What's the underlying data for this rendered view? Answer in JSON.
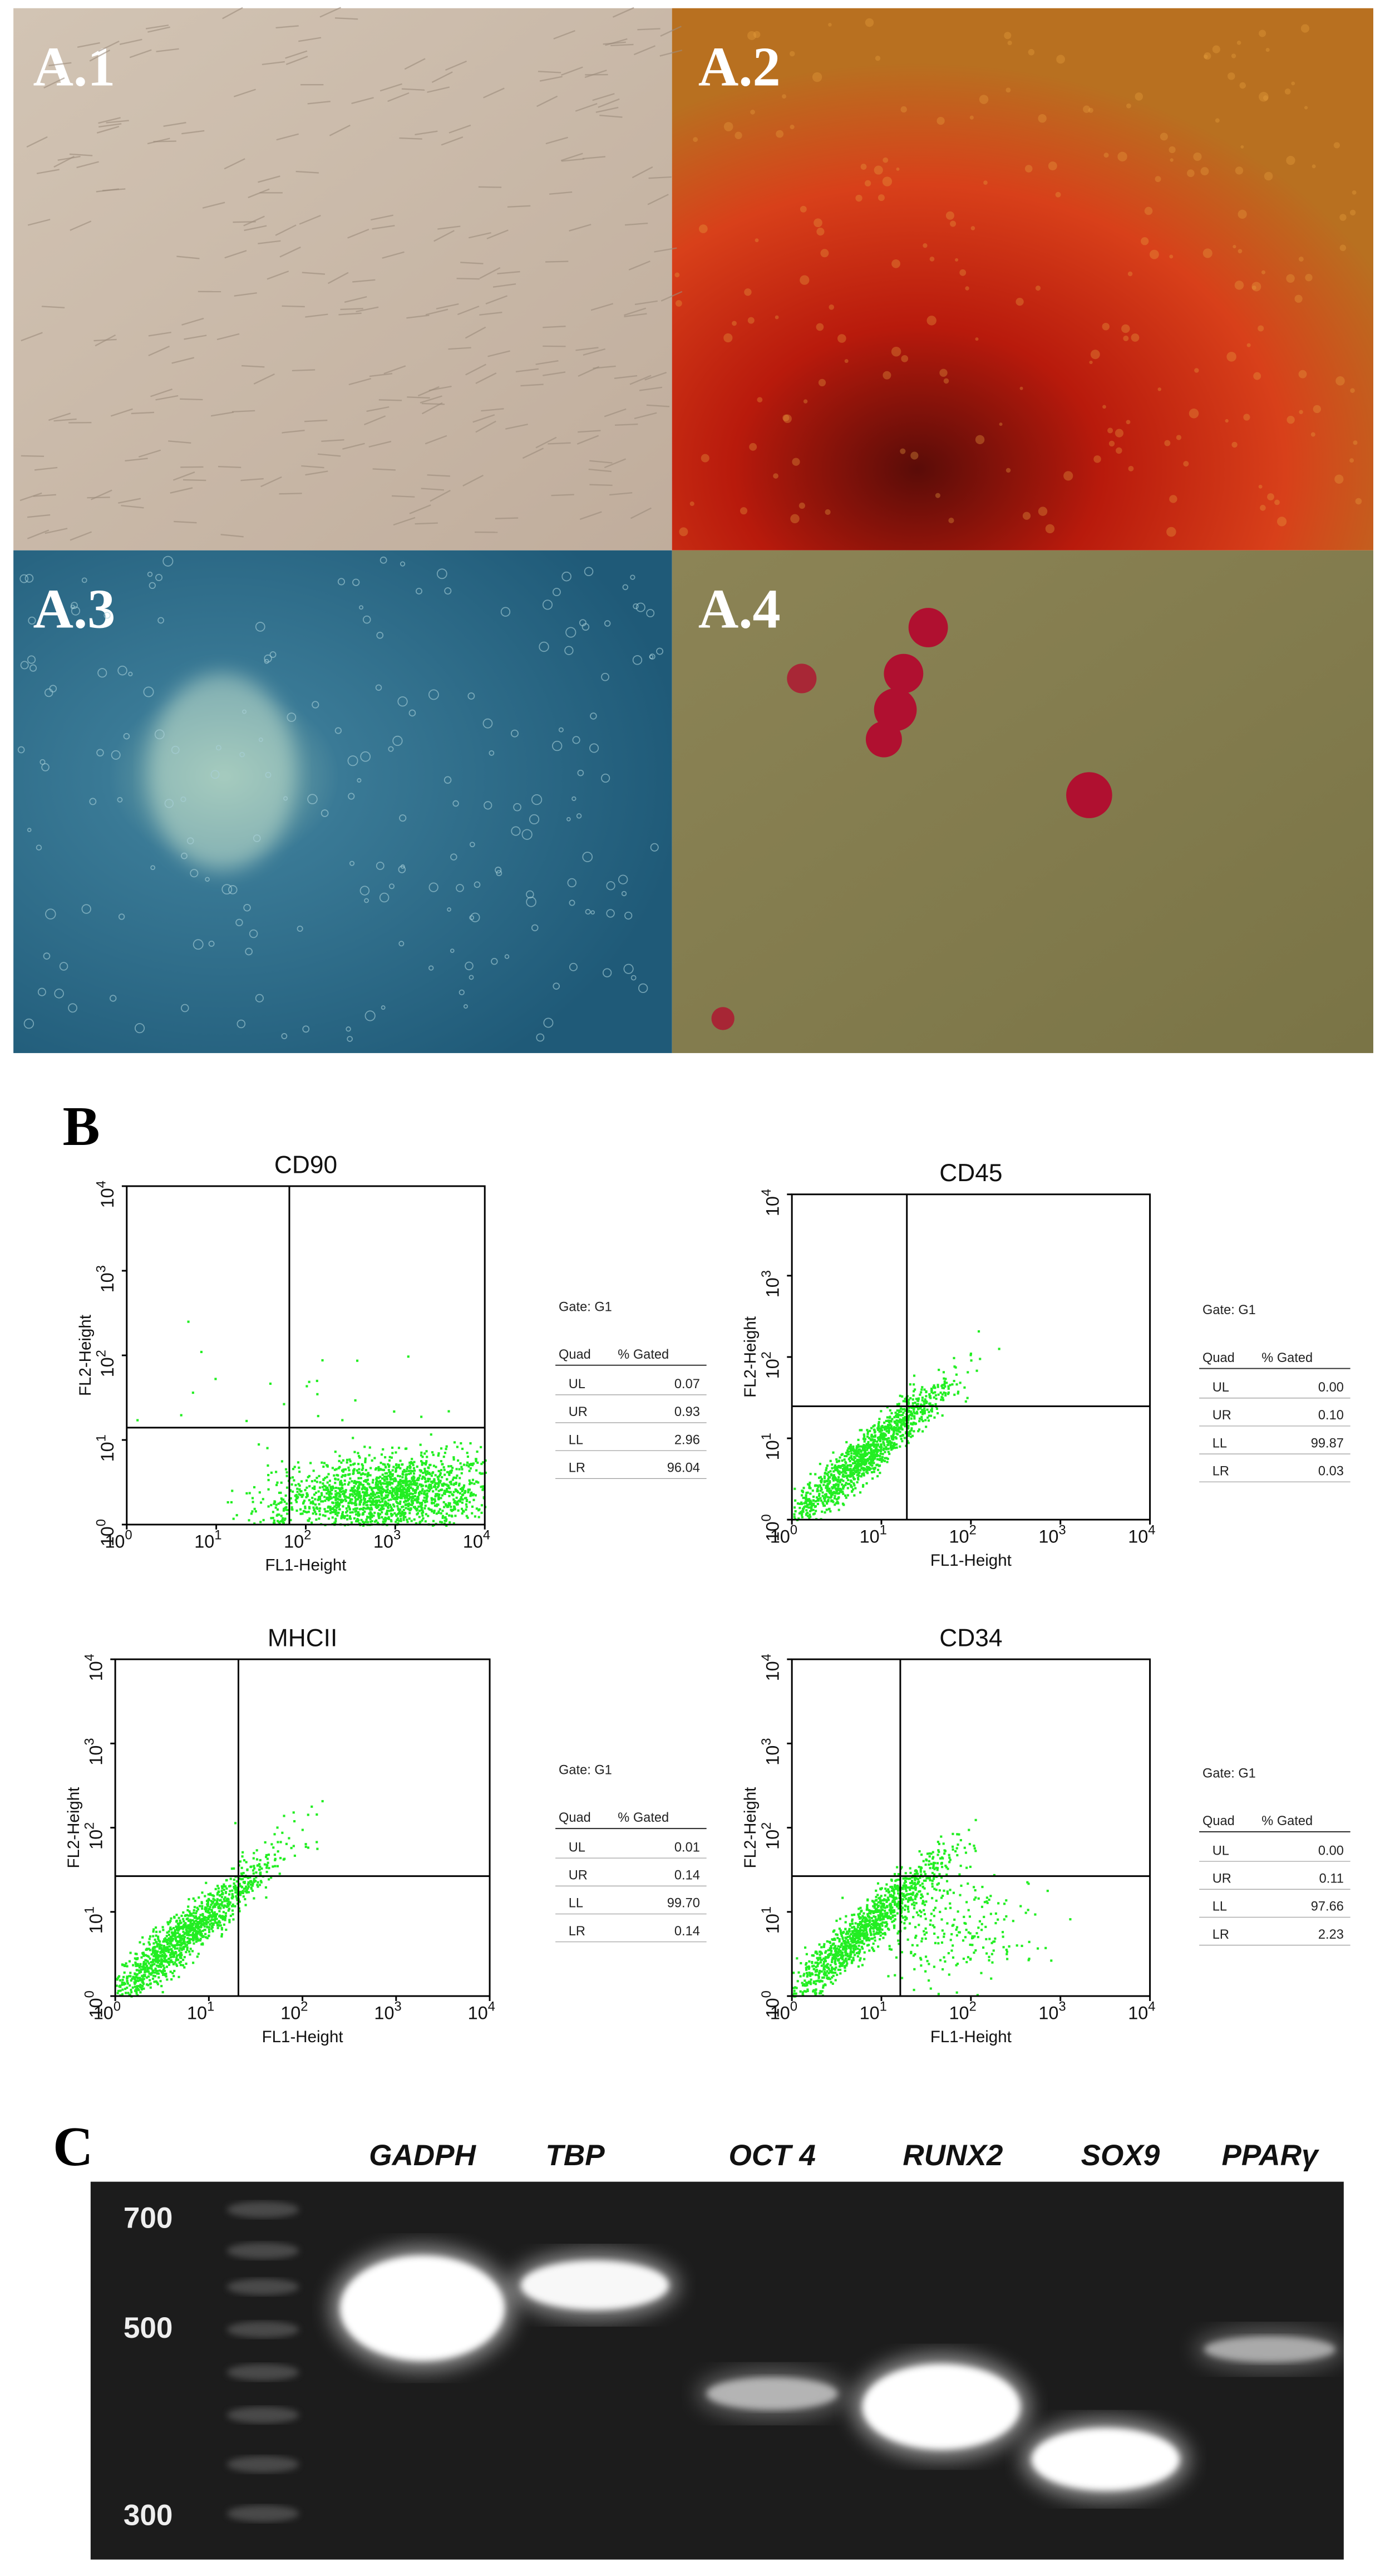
{
  "panel_a": {
    "labels": [
      "A.1",
      "A.2",
      "A.3",
      "A.4"
    ]
  },
  "panel_b": {
    "label": "B",
    "x_axis_label": "FL1-Height",
    "y_axis_label": "FL2-Height",
    "tick_base": "10",
    "tick_powers": [
      "0",
      "1",
      "2",
      "3",
      "4"
    ],
    "plots": [
      {
        "title": "CD90",
        "gate": "Gate: G1",
        "columns": [
          "Quad",
          "% Gated"
        ],
        "rows": [
          [
            "UL",
            "0.07"
          ],
          [
            "UR",
            "0.93"
          ],
          [
            "LL",
            "2.96"
          ],
          [
            "LR",
            "96.04"
          ]
        ]
      },
      {
        "title": "CD45",
        "gate": "Gate: G1",
        "columns": [
          "Quad",
          "% Gated"
        ],
        "rows": [
          [
            "UL",
            "0.00"
          ],
          [
            "UR",
            "0.10"
          ],
          [
            "LL",
            "99.87"
          ],
          [
            "LR",
            "0.03"
          ]
        ]
      },
      {
        "title": "MHCII",
        "gate": "Gate: G1",
        "columns": [
          "Quad",
          "% Gated"
        ],
        "rows": [
          [
            "UL",
            "0.01"
          ],
          [
            "UR",
            "0.14"
          ],
          [
            "LL",
            "99.70"
          ],
          [
            "LR",
            "0.14"
          ]
        ]
      },
      {
        "title": "CD34",
        "gate": "Gate: G1",
        "columns": [
          "Quad",
          "% Gated"
        ],
        "rows": [
          [
            "UL",
            "0.00"
          ],
          [
            "UR",
            "0.11"
          ],
          [
            "LL",
            "97.66"
          ],
          [
            "LR",
            "2.23"
          ]
        ]
      }
    ]
  },
  "panel_c": {
    "label": "C",
    "lanes": [
      "GADPH",
      "TBP",
      "OCT 4",
      "RUNX2",
      "SOX9",
      "PPARγ"
    ],
    "markers": [
      "700",
      "500",
      "300"
    ]
  }
}
